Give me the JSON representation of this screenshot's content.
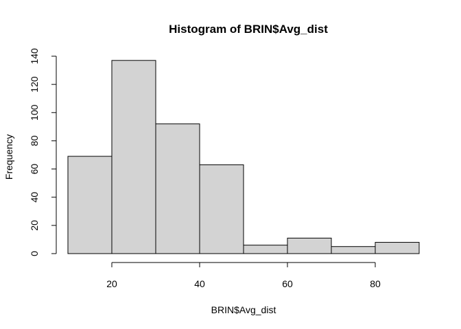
{
  "chart_data": {
    "type": "bar",
    "title": "Histogram of BRIN$Avg_dist",
    "xlabel": "BRIN$Avg_dist",
    "ylabel": "Frequency",
    "bins": [
      {
        "start": 10,
        "end": 20,
        "count": 69
      },
      {
        "start": 20,
        "end": 30,
        "count": 137
      },
      {
        "start": 30,
        "end": 40,
        "count": 92
      },
      {
        "start": 40,
        "end": 50,
        "count": 63
      },
      {
        "start": 50,
        "end": 60,
        "count": 6
      },
      {
        "start": 60,
        "end": 70,
        "count": 11
      },
      {
        "start": 70,
        "end": 80,
        "count": 5
      },
      {
        "start": 80,
        "end": 90,
        "count": 8
      }
    ],
    "xticks": [
      20,
      40,
      60,
      80
    ],
    "yticks": [
      0,
      20,
      40,
      60,
      80,
      100,
      120,
      140
    ],
    "xlim": [
      10,
      90
    ],
    "ylim": [
      0,
      140
    ],
    "grid": false,
    "colors": {
      "bar_fill": "#d3d3d3",
      "bar_stroke": "#000000"
    }
  }
}
